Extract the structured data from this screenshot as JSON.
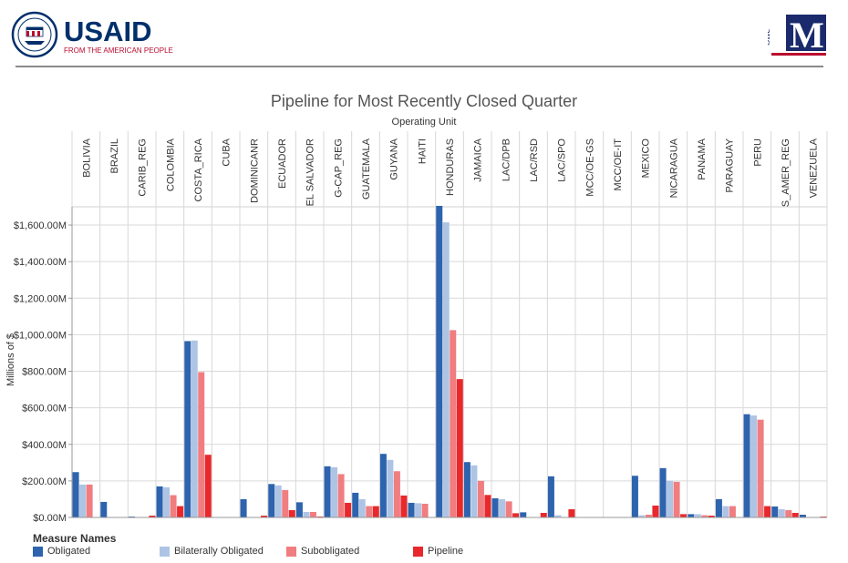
{
  "logos": {
    "usaid_wordmark": "USAID",
    "usaid_tagline": "FROM THE AMERICAN PEOPLE",
    "usaid_seal_text": "UNITED STATES AGENCY INTERNATIONAL DEVELOPMENT",
    "onem_text": "one",
    "onem_letter": "M"
  },
  "colors": {
    "Obligated": "#2e63ad",
    "Bilaterally Obligated": "#aec4e5",
    "Subobligated": "#f07d80",
    "Pipeline": "#e8282c",
    "gridline": "#d9d9d9",
    "usaid_blue": "#002f6c",
    "usaid_red": "#ba0c2f"
  },
  "chart_data": {
    "type": "bar",
    "title": "Pipeline for Most Recently Closed Quarter",
    "subtitle": "Operating Unit",
    "ylabel": "Millions of $",
    "ylim": [
      0,
      1700
    ],
    "yticks": [
      0,
      200,
      400,
      600,
      800,
      1000,
      1200,
      1400,
      1600
    ],
    "ytick_labels": [
      "$0.00M",
      "$200.00M",
      "$400.00M",
      "$600.00M",
      "$800.00M",
      "$1,000.00M",
      "$1,200.00M",
      "$1,400.00M",
      "$1,600.00M"
    ],
    "legend_title": "Measure Names",
    "legend_position": "bottom",
    "categories": [
      "BOLIVIA",
      "BRAZIL",
      "CARIB_REG",
      "COLOMBIA",
      "COSTA_RICA",
      "CUBA",
      "DOMINICANR",
      "ECUADOR",
      "EL SALVADOR",
      "G-CAP_REG",
      "GUATEMALA",
      "GUYANA",
      "HAITI",
      "HONDURAS",
      "JAMAICA",
      "LAC/DPB",
      "LAC/RSD",
      "LAC/SPO",
      "MCC/OE-GS",
      "MCC/OE-IT",
      "MEXICO",
      "NICARAGUA",
      "PANAMA",
      "PARAGUAY",
      "PERU",
      "S_AMER_REG",
      "VENEZUELA"
    ],
    "series": [
      {
        "name": "Obligated",
        "values": [
          248,
          85,
          3,
          170,
          965,
          0,
          100,
          183,
          83,
          280,
          135,
          348,
          80,
          1705,
          303,
          105,
          28,
          225,
          0,
          0,
          228,
          270,
          18,
          100,
          565,
          60,
          15
        ]
      },
      {
        "name": "Bilaterally Obligated",
        "values": [
          180,
          0,
          0,
          165,
          968,
          0,
          0,
          175,
          30,
          275,
          100,
          315,
          78,
          1615,
          285,
          100,
          0,
          12,
          0,
          0,
          12,
          200,
          18,
          62,
          558,
          45,
          0
        ]
      },
      {
        "name": "Subobligated",
        "values": [
          180,
          0,
          0,
          122,
          795,
          0,
          0,
          150,
          30,
          237,
          62,
          253,
          75,
          1025,
          200,
          88,
          0,
          0,
          0,
          0,
          15,
          195,
          12,
          62,
          535,
          40,
          0
        ]
      },
      {
        "name": "Pipeline",
        "values": [
          0,
          0,
          10,
          62,
          343,
          0,
          10,
          40,
          3,
          80,
          62,
          120,
          0,
          757,
          123,
          23,
          25,
          45,
          0,
          0,
          65,
          18,
          10,
          0,
          62,
          25,
          5
        ]
      }
    ]
  }
}
